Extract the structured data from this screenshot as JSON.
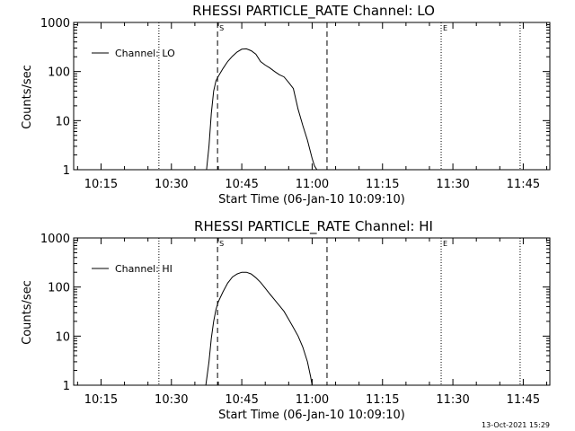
{
  "chart_data": [
    {
      "type": "line",
      "title": "RHESSI PARTICLE_RATE Channel: LO",
      "xlabel": "Start Time (06-Jan-10 10:09:10)",
      "ylabel": "Counts/sec",
      "yscale": "log",
      "ylim": [
        1,
        1000
      ],
      "xlim": [
        "10:09:10",
        "11:50:40"
      ],
      "xticks": [
        "10:15",
        "10:30",
        "10:45",
        "11:00",
        "11:15",
        "11:30",
        "11:45"
      ],
      "yticks": [
        "1",
        "10",
        "100",
        "1000"
      ],
      "legend": {
        "label": "Channel: LO",
        "placement": "top-left"
      },
      "dashed_markers": [
        "10:39:50",
        "11:03:10"
      ],
      "dotted_markers": [
        "10:27:20",
        "11:27:30",
        "11:44:20"
      ],
      "marker_labels": [
        {
          "text": "S",
          "at": "10:39:50"
        },
        {
          "text": "E",
          "at": "11:27:30"
        }
      ],
      "series": [
        {
          "name": "Channel: LO",
          "x": [
            "10:37:30",
            "10:38:00",
            "10:38:30",
            "10:39:00",
            "10:39:30",
            "10:40:00",
            "10:41:00",
            "10:42:00",
            "10:43:00",
            "10:44:00",
            "10:45:00",
            "10:46:00",
            "10:47:00",
            "10:48:00",
            "10:49:00",
            "10:50:00",
            "10:51:00",
            "10:52:00",
            "10:53:00",
            "10:54:00",
            "10:55:00",
            "10:56:00",
            "10:57:00",
            "10:58:00",
            "10:59:00",
            "11:00:00",
            "11:00:30",
            "11:01:00"
          ],
          "y": [
            1,
            3,
            14,
            40,
            65,
            80,
            115,
            160,
            205,
            250,
            285,
            290,
            265,
            225,
            160,
            135,
            118,
            100,
            86,
            78,
            60,
            45,
            17,
            8,
            4,
            1.7,
            1.2,
            1
          ]
        }
      ]
    },
    {
      "type": "line",
      "title": "RHESSI PARTICLE_RATE Channel: HI",
      "xlabel": "Start Time (06-Jan-10 10:09:10)",
      "ylabel": "Counts/sec",
      "yscale": "log",
      "ylim": [
        1,
        1000
      ],
      "xlim": [
        "10:09:10",
        "11:50:40"
      ],
      "xticks": [
        "10:15",
        "10:30",
        "10:45",
        "11:00",
        "11:15",
        "11:30",
        "11:45"
      ],
      "yticks": [
        "1",
        "10",
        "100",
        "1000"
      ],
      "legend": {
        "label": "Channel: HI",
        "placement": "top-left"
      },
      "dashed_markers": [
        "10:39:50",
        "11:03:10"
      ],
      "dotted_markers": [
        "10:27:20",
        "11:27:30",
        "11:44:20"
      ],
      "marker_labels": [
        {
          "text": "S",
          "at": "10:39:50"
        },
        {
          "text": "E",
          "at": "11:27:30"
        }
      ],
      "series": [
        {
          "name": "Channel: HI",
          "x": [
            "10:37:20",
            "10:38:00",
            "10:38:30",
            "10:39:00",
            "10:39:30",
            "10:40:00",
            "10:41:00",
            "10:42:00",
            "10:43:00",
            "10:44:00",
            "10:45:00",
            "10:46:00",
            "10:47:00",
            "10:48:00",
            "10:49:00",
            "10:50:00",
            "10:51:00",
            "10:52:00",
            "10:53:00",
            "10:54:00",
            "10:55:00",
            "10:56:00",
            "10:57:00",
            "10:58:00",
            "10:59:00",
            "10:59:40",
            "11:00:00"
          ],
          "y": [
            1,
            3,
            9,
            20,
            35,
            50,
            80,
            120,
            160,
            185,
            200,
            200,
            185,
            155,
            125,
            95,
            72,
            55,
            42,
            32,
            22,
            15,
            10,
            6,
            3,
            1.5,
            1
          ]
        }
      ]
    }
  ],
  "footer": {
    "timestamp": "13-Oct-2021 15:29"
  }
}
